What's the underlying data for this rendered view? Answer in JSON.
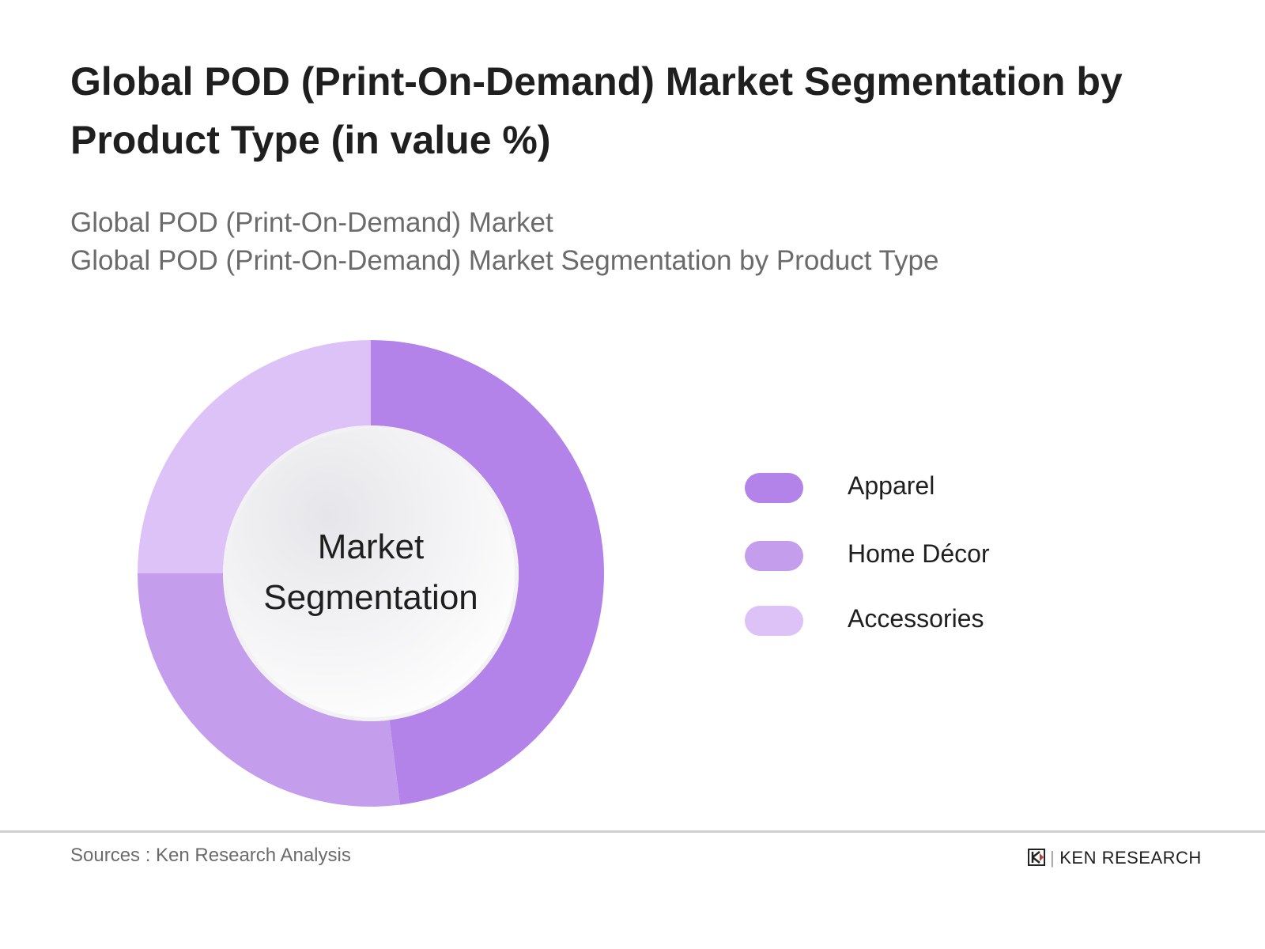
{
  "header": {
    "title": "Global POD (Print-On-Demand) Market Segmentation by Product Type (in value %)",
    "subtitle_line1": "Global POD (Print-On-Demand) Market",
    "subtitle_line2": "Global POD (Print-On-Demand) Market Segmentation by Product Type"
  },
  "chart_data": {
    "type": "pie",
    "variant": "donut",
    "center_label": "Market Segmentation",
    "categories": [
      "Apparel",
      "Home Décor",
      "Accessories"
    ],
    "values": [
      48,
      27,
      25
    ],
    "colors": [
      "#b383e9",
      "#c59ded",
      "#dcc2f6"
    ],
    "start_angle": "top, clockwise",
    "legend_position": "right"
  },
  "footer": {
    "source": "Sources : Ken Research Analysis",
    "logo_text": "KEN RESEARCH"
  }
}
